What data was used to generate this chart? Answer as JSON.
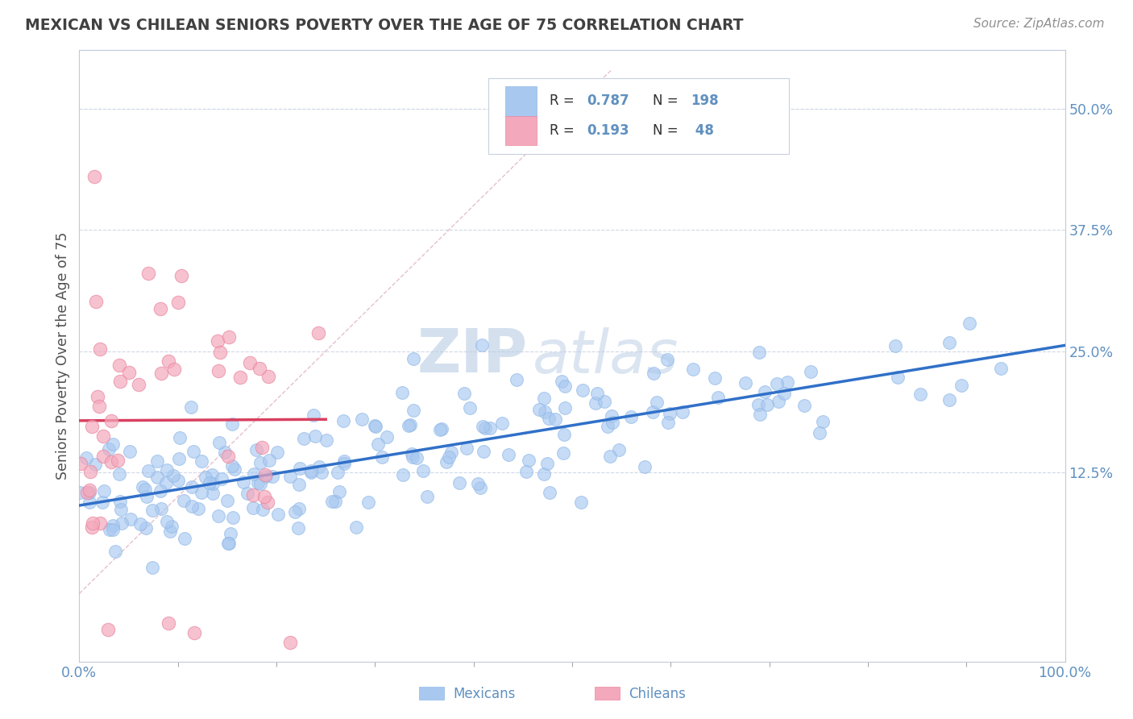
{
  "title": "MEXICAN VS CHILEAN SENIORS POVERTY OVER THE AGE OF 75 CORRELATION CHART",
  "source": "Source: ZipAtlas.com",
  "ylabel": "Seniors Poverty Over the Age of 75",
  "ytick_labels": [
    "12.5%",
    "25.0%",
    "37.5%",
    "50.0%"
  ],
  "ytick_values": [
    0.125,
    0.25,
    0.375,
    0.5
  ],
  "xlim": [
    0.0,
    1.0
  ],
  "ylim": [
    -0.07,
    0.56
  ],
  "r_mexican": 0.787,
  "n_mexican": 198,
  "r_chilean": 0.193,
  "n_chilean": 48,
  "mexican_color": "#a8c8f0",
  "chilean_color": "#f4a8bc",
  "mexican_line_color": "#3070c8",
  "chilean_line_color": "#d84060",
  "diagonal_color": "#d0d0e0",
  "watermark_zip": "ZIP",
  "watermark_atlas": "atlas",
  "watermark_color": "#c8d8ee",
  "background_color": "#ffffff",
  "grid_color": "#d0d8e8",
  "title_color": "#404040",
  "axis_label_color": "#505050",
  "tick_color": "#6090c0",
  "source_color": "#909090"
}
